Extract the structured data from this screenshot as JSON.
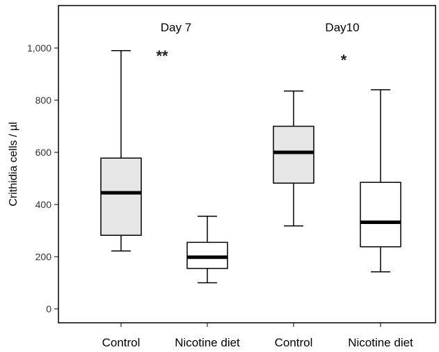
{
  "chart_data": {
    "type": "boxplot",
    "ylabel": "Crithidia cells / µl",
    "xlabel": "",
    "ylim": [
      -50,
      1100
    ],
    "yticks": [
      0,
      200,
      400,
      600,
      800,
      1000
    ],
    "ytick_labels": [
      "0",
      "200",
      "400",
      "600",
      "800",
      "1,000"
    ],
    "grid": false,
    "groups": [
      {
        "title": "Day 7",
        "significance": "**"
      },
      {
        "title": "Day10",
        "significance": "*"
      }
    ],
    "boxes": [
      {
        "category": "Control",
        "group": 0,
        "min": 222,
        "q1": 282,
        "median": 445,
        "q3": 578,
        "max": 990,
        "fill": "#e6e6e6"
      },
      {
        "category": "Nicotine diet",
        "group": 0,
        "min": 100,
        "q1": 155,
        "median": 198,
        "q3": 255,
        "max": 355,
        "fill": "#ffffff"
      },
      {
        "category": "Control",
        "group": 1,
        "min": 318,
        "q1": 482,
        "median": 600,
        "q3": 700,
        "max": 835,
        "fill": "#e6e6e6"
      },
      {
        "category": "Nicotine diet",
        "group": 1,
        "min": 142,
        "q1": 238,
        "median": 332,
        "q3": 485,
        "max": 840,
        "fill": "#ffffff"
      }
    ]
  }
}
